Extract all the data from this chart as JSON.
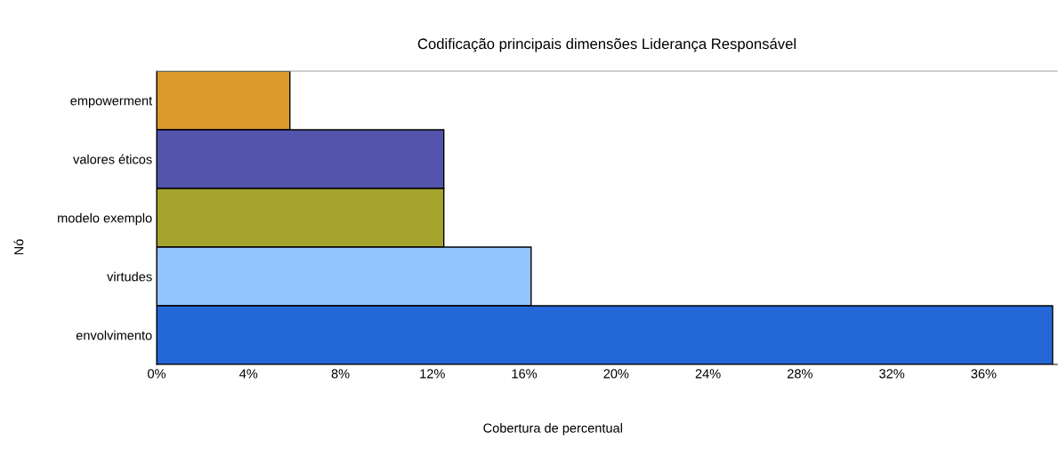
{
  "chart_data": {
    "type": "bar",
    "orientation": "horizontal",
    "title": "Codificação principais dimensões Liderança Responsável",
    "xlabel": "Cobertura de percentual",
    "ylabel": "Nó",
    "categories": [
      "empowerment",
      "valores éticos",
      "modelo exemplo",
      "virtudes",
      "envolvimento"
    ],
    "values": [
      5.8,
      12.5,
      12.5,
      16.3,
      39.0
    ],
    "colors": [
      "#dc9a2c",
      "#5454ac",
      "#a4a42c",
      "#94c4fc",
      "#2468d8"
    ],
    "xlim": [
      0,
      39.2
    ],
    "xticks": [
      {
        "value": 0,
        "label": "0%"
      },
      {
        "value": 4,
        "label": "4%"
      },
      {
        "value": 8,
        "label": "8%"
      },
      {
        "value": 12,
        "label": "12%"
      },
      {
        "value": 16,
        "label": "16%"
      },
      {
        "value": 20,
        "label": "20%"
      },
      {
        "value": 24,
        "label": "24%"
      },
      {
        "value": 28,
        "label": "28%"
      },
      {
        "value": 32,
        "label": "32%"
      },
      {
        "value": 36,
        "label": "36%"
      }
    ],
    "grid": false,
    "legend": false
  }
}
